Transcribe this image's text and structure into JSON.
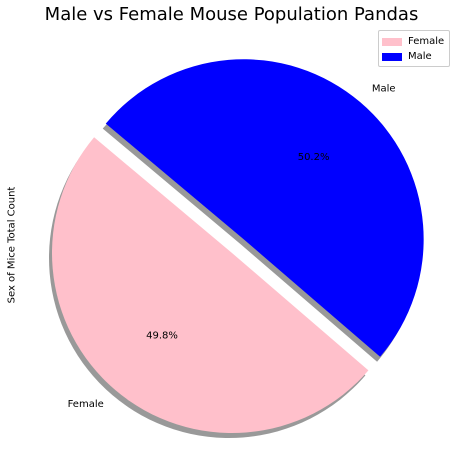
{
  "chart_data": {
    "type": "pie",
    "title": "Male vs Female Mouse Population Pandas",
    "ylabel": "Sex of Mice Total Count",
    "slices": [
      {
        "label": "Female",
        "percent": 49.8,
        "percent_label": "49.8%",
        "color": "#ffc0cb",
        "exploded": false
      },
      {
        "label": "Male",
        "percent": 50.2,
        "percent_label": "50.2%",
        "color": "#0000ff",
        "exploded": true
      }
    ],
    "start_angle_deg": 140,
    "shadow": true,
    "legend": {
      "placement": "top-right",
      "entries": [
        {
          "label": "Female",
          "color": "#ffc0cb"
        },
        {
          "label": "Male",
          "color": "#0000ff"
        }
      ]
    }
  }
}
